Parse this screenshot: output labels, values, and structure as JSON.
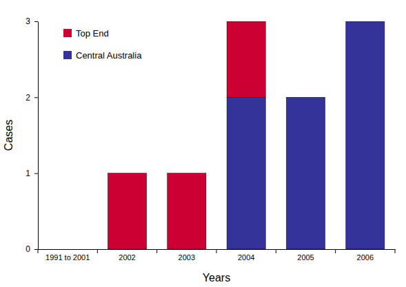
{
  "chart_data": {
    "type": "bar",
    "stacked": true,
    "x_label": "Years",
    "y_label": "Cases",
    "categories": [
      "1991 to 2001",
      "2002",
      "2003",
      "2004",
      "2005",
      "2006"
    ],
    "series": [
      {
        "name": "Central Australia",
        "color": "#333399",
        "values": [
          0,
          0,
          0,
          2,
          2,
          3
        ]
      },
      {
        "name": "Top End",
        "color": "#cc0033",
        "values": [
          0,
          1,
          1,
          1,
          0,
          0
        ]
      }
    ],
    "ylim": [
      0,
      3
    ],
    "yticks": [
      0,
      1,
      2,
      3
    ],
    "grid": false,
    "legend": "upper left"
  }
}
